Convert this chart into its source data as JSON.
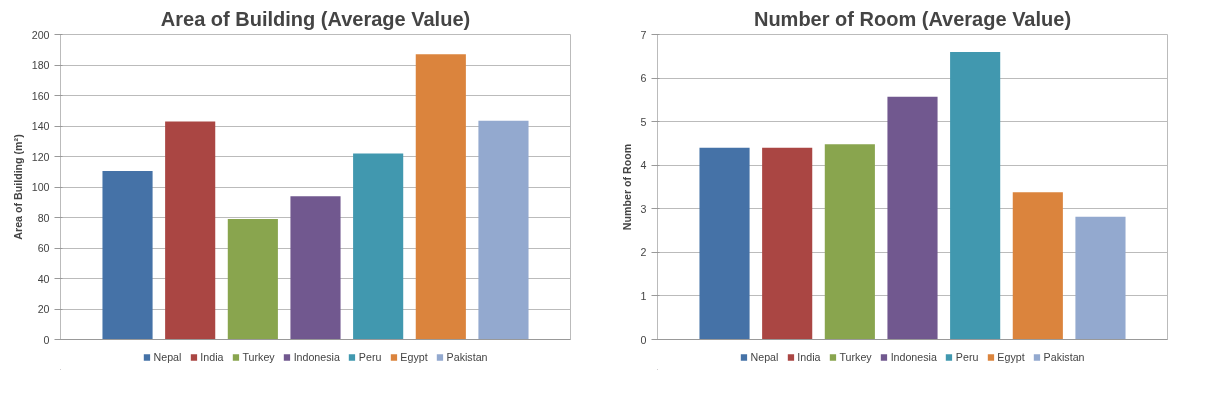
{
  "chart_data": [
    {
      "type": "bar",
      "title": "Area of Building (Average Value)",
      "ylabel": "Area of Building (m²)",
      "categories": [
        null
      ],
      "ylim": [
        0,
        200
      ],
      "yticks": [
        0,
        20,
        40,
        60,
        80,
        100,
        120,
        140,
        160,
        180,
        200
      ],
      "grid": "y",
      "legend": "bottom",
      "tick_labels": "y",
      "series": [
        {
          "name": "Nepal",
          "color": "#4572a7",
          "values": [
            110.5
          ]
        },
        {
          "name": "India",
          "color": "#aa4643",
          "values": [
            143
          ]
        },
        {
          "name": "Turkey",
          "color": "#89a54e",
          "values": [
            79
          ]
        },
        {
          "name": "Indonesia",
          "color": "#71588f",
          "values": [
            94
          ]
        },
        {
          "name": "Peru",
          "color": "#4198af",
          "values": [
            122
          ]
        },
        {
          "name": "Egypt",
          "color": "#db843d",
          "values": [
            187
          ]
        },
        {
          "name": "Pakistan",
          "color": "#93a9cf",
          "values": [
            143.5
          ]
        }
      ]
    },
    {
      "type": "bar",
      "title": "Number of Room (Average Value)",
      "ylabel": "Number of Room",
      "categories": [
        null
      ],
      "ylim": [
        0,
        7
      ],
      "yticks": [
        0,
        1,
        2,
        3,
        4,
        5,
        6,
        7
      ],
      "grid": "y",
      "legend": "bottom",
      "tick_labels": "y",
      "series": [
        {
          "name": "Nepal",
          "color": "#4572a7",
          "values": [
            4.4
          ]
        },
        {
          "name": "India",
          "color": "#aa4643",
          "values": [
            4.4
          ]
        },
        {
          "name": "Turkey",
          "color": "#89a54e",
          "values": [
            4.48
          ]
        },
        {
          "name": "Indonesia",
          "color": "#71588f",
          "values": [
            5.57
          ]
        },
        {
          "name": "Peru",
          "color": "#4198af",
          "values": [
            6.6
          ]
        },
        {
          "name": "Egypt",
          "color": "#db843d",
          "values": [
            3.38
          ]
        },
        {
          "name": "Pakistan",
          "color": "#93a9cf",
          "values": [
            2.82
          ]
        }
      ]
    }
  ]
}
